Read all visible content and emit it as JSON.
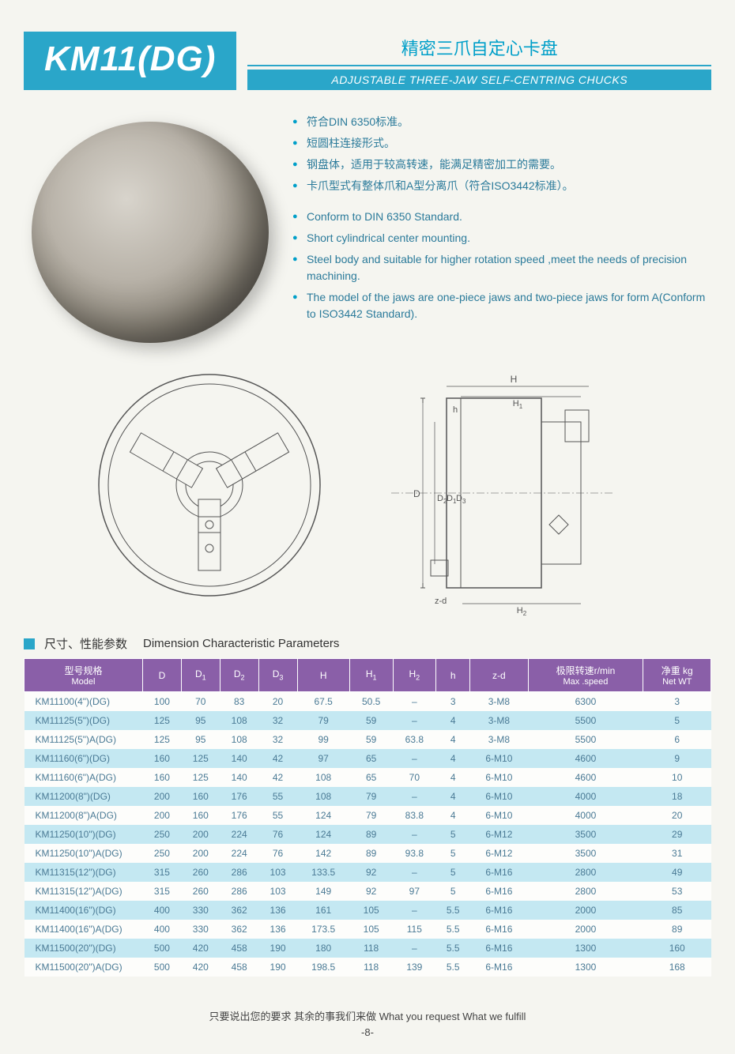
{
  "header": {
    "title": "KM11(DG)",
    "subtitle_cn": "精密三爪自定心卡盘",
    "subtitle_en": "ADJUSTABLE THREE-JAW SELF-CENTRING CHUCKS"
  },
  "bullets_cn": [
    "符合DIN 6350标准。",
    "短圆柱连接形式。",
    "钢盘体，适用于较高转速，能满足精密加工的需要。",
    "卡爪型式有整体爪和A型分离爪（符合ISO3442标准）。"
  ],
  "bullets_en": [
    "Conform to DIN 6350 Standard.",
    "Short cylindrical center mounting.",
    "Steel body and suitable for higher rotation speed ,meet the needs of precision machining.",
    "The model of the jaws are one-piece jaws and two-piece jaws for form A(Conform to ISO3442 Standard)."
  ],
  "diagram_labels": {
    "H": "H",
    "H1": "H1",
    "h": "h",
    "D": "D",
    "D1": "D1",
    "D2": "D2",
    "D3": "D3",
    "H2": "H2",
    "zd": "z-d"
  },
  "section": {
    "cn": "尺寸、性能参数",
    "en": "Dimension  Characteristic Parameters"
  },
  "table": {
    "columns": [
      {
        "cn": "型号规格",
        "en": "Model"
      },
      {
        "cn": "D",
        "en": ""
      },
      {
        "cn": "D1",
        "en": ""
      },
      {
        "cn": "D2",
        "en": ""
      },
      {
        "cn": "D3",
        "en": ""
      },
      {
        "cn": "H",
        "en": ""
      },
      {
        "cn": "H1",
        "en": ""
      },
      {
        "cn": "H2",
        "en": ""
      },
      {
        "cn": "h",
        "en": ""
      },
      {
        "cn": "z-d",
        "en": ""
      },
      {
        "cn": "极限转速r/min",
        "en": "Max .speed"
      },
      {
        "cn": "净重   kg",
        "en": "Net WT"
      }
    ],
    "rows": [
      [
        "KM11100(4\")(DG)",
        "100",
        "70",
        "83",
        "20",
        "67.5",
        "50.5",
        "–",
        "3",
        "3-M8",
        "6300",
        "3"
      ],
      [
        "KM11125(5\")(DG)",
        "125",
        "95",
        "108",
        "32",
        "79",
        "59",
        "–",
        "4",
        "3-M8",
        "5500",
        "5"
      ],
      [
        "KM11125(5\")A(DG)",
        "125",
        "95",
        "108",
        "32",
        "99",
        "59",
        "63.8",
        "4",
        "3-M8",
        "5500",
        "6"
      ],
      [
        "KM11160(6\")(DG)",
        "160",
        "125",
        "140",
        "42",
        "97",
        "65",
        "–",
        "4",
        "6-M10",
        "4600",
        "9"
      ],
      [
        "KM11160(6\")A(DG)",
        "160",
        "125",
        "140",
        "42",
        "108",
        "65",
        "70",
        "4",
        "6-M10",
        "4600",
        "10"
      ],
      [
        "KM11200(8\")(DG)",
        "200",
        "160",
        "176",
        "55",
        "108",
        "79",
        "–",
        "4",
        "6-M10",
        "4000",
        "18"
      ],
      [
        "KM11200(8\")A(DG)",
        "200",
        "160",
        "176",
        "55",
        "124",
        "79",
        "83.8",
        "4",
        "6-M10",
        "4000",
        "20"
      ],
      [
        "KM11250(10\")(DG)",
        "250",
        "200",
        "224",
        "76",
        "124",
        "89",
        "–",
        "5",
        "6-M12",
        "3500",
        "29"
      ],
      [
        "KM11250(10\")A(DG)",
        "250",
        "200",
        "224",
        "76",
        "142",
        "89",
        "93.8",
        "5",
        "6-M12",
        "3500",
        "31"
      ],
      [
        "KM11315(12\")(DG)",
        "315",
        "260",
        "286",
        "103",
        "133.5",
        "92",
        "–",
        "5",
        "6-M16",
        "2800",
        "49"
      ],
      [
        "KM11315(12\")A(DG)",
        "315",
        "260",
        "286",
        "103",
        "149",
        "92",
        "97",
        "5",
        "6-M16",
        "2800",
        "53"
      ],
      [
        "KM11400(16\")(DG)",
        "400",
        "330",
        "362",
        "136",
        "161",
        "105",
        "–",
        "5.5",
        "6-M16",
        "2000",
        "85"
      ],
      [
        "KM11400(16\")A(DG)",
        "400",
        "330",
        "362",
        "136",
        "173.5",
        "105",
        "115",
        "5.5",
        "6-M16",
        "2000",
        "89"
      ],
      [
        "KM11500(20\")(DG)",
        "500",
        "420",
        "458",
        "190",
        "180",
        "118",
        "–",
        "5.5",
        "6-M16",
        "1300",
        "160"
      ],
      [
        "KM11500(20\")A(DG)",
        "500",
        "420",
        "458",
        "190",
        "198.5",
        "118",
        "139",
        "5.5",
        "6-M16",
        "1300",
        "168"
      ]
    ],
    "header_bg": "#8a5fa8",
    "row_alt_bg": "#c4e8f2",
    "row_bg": "#fdfdfb"
  },
  "footer": {
    "line": "只要说出您的要求   其余的事我们来做    What you request  What we fulfill",
    "page": "-8-"
  },
  "colors": {
    "accent": "#2aa6c9",
    "text_blue": "#2a7a9a",
    "purple": "#8a5fa8",
    "light_blue": "#c4e8f2"
  }
}
